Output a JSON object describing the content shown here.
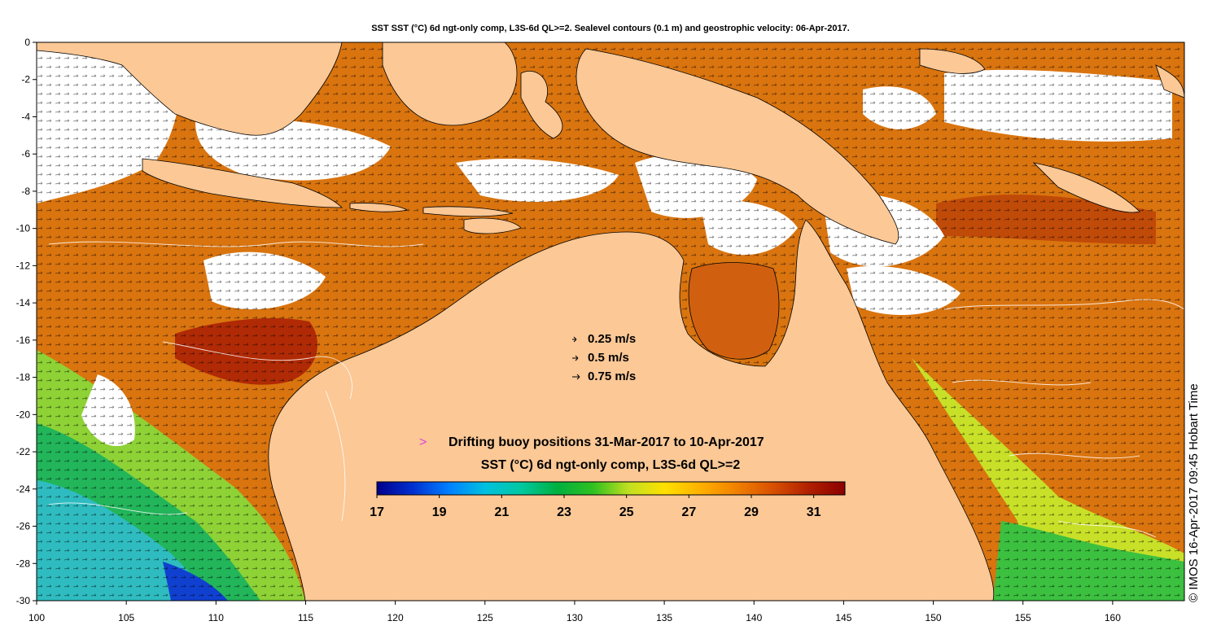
{
  "title": "SST SST (°C) 6d ngt-only comp, L3S-6d QL>=2. Sealevel contours (0.1 m) and geostrophic velocity: 06-Apr-2017.",
  "credit": "© IMOS 16-Apr-2017 09:45 Hobart Time",
  "axes": {
    "x": {
      "min": 100,
      "max": 164,
      "ticks": [
        "100",
        "105",
        "110",
        "115",
        "120",
        "125",
        "130",
        "135",
        "140",
        "145",
        "150",
        "155",
        "160"
      ]
    },
    "y": {
      "min": -30,
      "max": 0,
      "ticks": [
        "0",
        "-2",
        "-4",
        "-6",
        "-8",
        "-10",
        "-12",
        "-14",
        "-16",
        "-18",
        "-20",
        "-22",
        "-24",
        "-26",
        "-28",
        "-30"
      ]
    }
  },
  "velocity_legend": {
    "items": [
      {
        "label": "0.25 m/s",
        "value": 0.25
      },
      {
        "label": "0.5 m/s",
        "value": 0.5
      },
      {
        "label": "0.75 m/s",
        "value": 0.75
      }
    ]
  },
  "buoy_legend": {
    "marker": ">",
    "label": "Drifting buoy positions 31-Mar-2017 to 10-Apr-2017",
    "marker_color": "#e040e0"
  },
  "colorbar": {
    "label": "SST (°C) 6d ngt-only comp, L3S-6d QL>=2",
    "min": 17,
    "max": 32,
    "ticks": [
      "17",
      "19",
      "21",
      "23",
      "25",
      "27",
      "29",
      "31"
    ],
    "colors": [
      "#00008b",
      "#0030d0",
      "#0080ff",
      "#00c0e0",
      "#00c8a0",
      "#00b040",
      "#30c020",
      "#c0e020",
      "#ffe000",
      "#ffb000",
      "#f08000",
      "#d85000",
      "#b02000",
      "#8b0000"
    ]
  },
  "colors": {
    "land": "#fbc896",
    "no_data": "#ffffff",
    "coastline": "#000000"
  }
}
